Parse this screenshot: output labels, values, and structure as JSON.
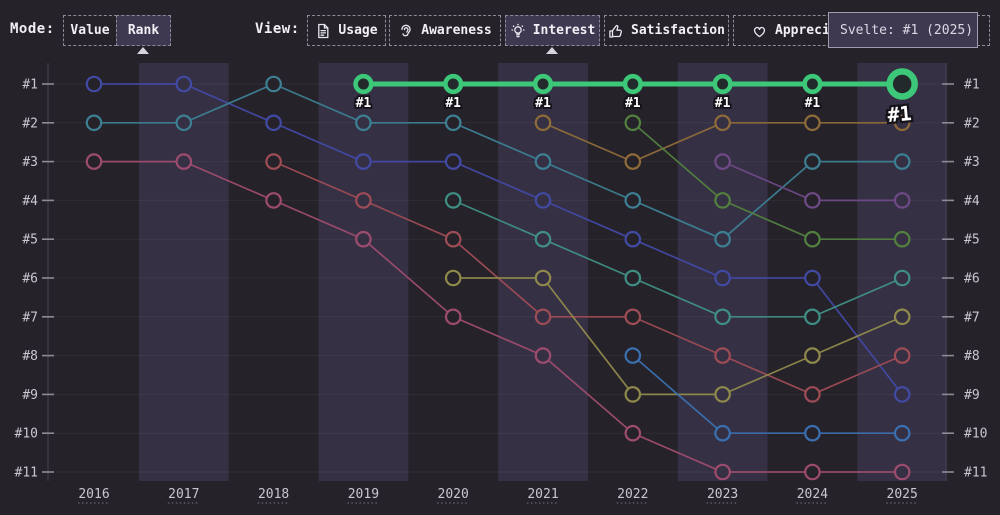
{
  "topbar": {
    "mode_label": "Mode:",
    "view_label": "View:",
    "mode_buttons": [
      {
        "label": "Value",
        "selected": false
      },
      {
        "label": "Rank",
        "selected": true
      }
    ],
    "view_buttons": [
      {
        "label": "Usage",
        "icon": "document-icon",
        "selected": false
      },
      {
        "label": "Awareness",
        "icon": "ear-icon",
        "selected": false
      },
      {
        "label": "Interest",
        "icon": "lightbulb-icon",
        "selected": true
      },
      {
        "label": "Satisfaction",
        "icon": "thumbs-up-icon",
        "selected": false
      },
      {
        "label": "Appreciation",
        "icon": "heart-icon",
        "selected": false
      }
    ]
  },
  "tooltip": {
    "text": "Svelte: #1 (2025)"
  },
  "colors": {
    "background": "#252229",
    "stripe": "#353044",
    "selected_button_bg": "#3e3950",
    "highlight_green": "#3cc878",
    "axis_text": "#c9c6d1"
  },
  "chart_data": {
    "type": "line",
    "subtype": "bump-rank-chart",
    "x": [
      2016,
      2017,
      2018,
      2019,
      2020,
      2021,
      2022,
      2023,
      2024,
      2025
    ],
    "rank_labels": [
      "#1",
      "#2",
      "#3",
      "#4",
      "#5",
      "#6",
      "#7",
      "#8",
      "#9",
      "#10",
      "#11"
    ],
    "ylim": [
      1,
      11
    ],
    "grid": true,
    "highlighted_series": "Svelte",
    "highlight_point_label": "#1",
    "series": [
      {
        "name": "svelte",
        "color": "#3cc878",
        "highlight": true,
        "points": [
          [
            2019,
            1
          ],
          [
            2020,
            1
          ],
          [
            2021,
            1
          ],
          [
            2022,
            1
          ],
          [
            2023,
            1
          ],
          [
            2024,
            1
          ],
          [
            2025,
            1
          ]
        ],
        "point_labels": [
          "#1",
          "#1",
          "#1",
          "#1",
          "#1",
          "#1",
          "#1"
        ]
      },
      {
        "name": "series-indigo",
        "color": "#414aa4",
        "points": [
          [
            2016,
            1
          ],
          [
            2017,
            1
          ],
          [
            2018,
            2
          ],
          [
            2019,
            3
          ],
          [
            2020,
            3
          ],
          [
            2021,
            4
          ],
          [
            2022,
            5
          ],
          [
            2023,
            6
          ],
          [
            2024,
            6
          ],
          [
            2025,
            9
          ]
        ]
      },
      {
        "name": "series-teal",
        "color": "#3d7f93",
        "points": [
          [
            2016,
            2
          ],
          [
            2017,
            2
          ],
          [
            2018,
            1
          ],
          [
            2019,
            2
          ],
          [
            2020,
            2
          ],
          [
            2021,
            3
          ],
          [
            2022,
            4
          ],
          [
            2023,
            5
          ],
          [
            2024,
            3
          ],
          [
            2025,
            3
          ]
        ]
      },
      {
        "name": "series-magenta",
        "color": "#9e4c6e",
        "points": [
          [
            2016,
            3
          ],
          [
            2017,
            3
          ],
          [
            2018,
            4
          ],
          [
            2019,
            5
          ],
          [
            2020,
            7
          ],
          [
            2021,
            8
          ],
          [
            2022,
            10
          ],
          [
            2023,
            11
          ],
          [
            2024,
            11
          ],
          [
            2025,
            11
          ]
        ]
      },
      {
        "name": "series-red",
        "color": "#9e4c55",
        "points": [
          [
            2018,
            3
          ],
          [
            2019,
            4
          ],
          [
            2020,
            5
          ],
          [
            2021,
            7
          ],
          [
            2022,
            7
          ],
          [
            2023,
            8
          ],
          [
            2024,
            9
          ],
          [
            2025,
            8
          ]
        ]
      },
      {
        "name": "series-seagreen",
        "color": "#3f8f85",
        "points": [
          [
            2020,
            4
          ],
          [
            2021,
            5
          ],
          [
            2022,
            6
          ],
          [
            2023,
            7
          ],
          [
            2024,
            7
          ],
          [
            2025,
            6
          ]
        ]
      },
      {
        "name": "series-olive",
        "color": "#8f8a4c",
        "points": [
          [
            2020,
            6
          ],
          [
            2021,
            6
          ],
          [
            2022,
            9
          ],
          [
            2023,
            9
          ],
          [
            2024,
            8
          ],
          [
            2025,
            7
          ]
        ]
      },
      {
        "name": "series-tan",
        "color": "#8f6b3a",
        "points": [
          [
            2021,
            2
          ],
          [
            2022,
            3
          ],
          [
            2023,
            2
          ],
          [
            2024,
            2
          ],
          [
            2025,
            2
          ]
        ]
      },
      {
        "name": "series-green",
        "color": "#52803f",
        "points": [
          [
            2022,
            2
          ],
          [
            2023,
            4
          ],
          [
            2024,
            5
          ],
          [
            2025,
            5
          ]
        ]
      },
      {
        "name": "series-blue",
        "color": "#3a70b0",
        "points": [
          [
            2022,
            8
          ],
          [
            2023,
            10
          ],
          [
            2024,
            10
          ],
          [
            2025,
            10
          ]
        ]
      },
      {
        "name": "series-purple",
        "color": "#6f4a87",
        "points": [
          [
            2023,
            3
          ],
          [
            2024,
            4
          ],
          [
            2025,
            4
          ]
        ]
      }
    ]
  }
}
